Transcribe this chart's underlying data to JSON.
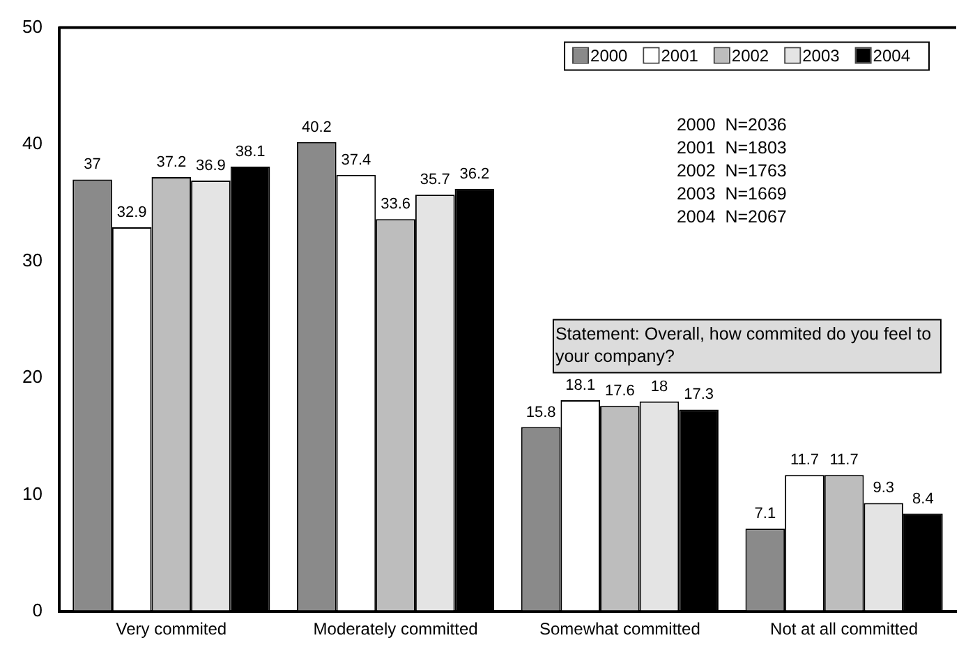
{
  "chart_data": {
    "type": "bar",
    "categories": [
      "Very commited",
      "Moderately committed",
      "Somewhat committed",
      "Not at all committed"
    ],
    "series": [
      {
        "name": "2000",
        "color": "#8a8a8a",
        "values": [
          37,
          40.2,
          15.8,
          7.1
        ]
      },
      {
        "name": "2001",
        "color": "#ffffff",
        "values": [
          32.9,
          37.4,
          18.1,
          11.7
        ]
      },
      {
        "name": "2002",
        "color": "#bdbdbd",
        "values": [
          37.2,
          33.6,
          17.6,
          11.7
        ]
      },
      {
        "name": "2003",
        "color": "#e4e4e4",
        "values": [
          36.9,
          35.7,
          18,
          9.3
        ]
      },
      {
        "name": "2004",
        "color": "#000000",
        "values": [
          38.1,
          36.2,
          17.3,
          8.4
        ]
      }
    ],
    "ylim": [
      0,
      50
    ],
    "yticks": [
      0,
      10,
      20,
      30,
      40,
      50
    ],
    "grid": false,
    "legend": "top right",
    "data_labels": true,
    "annotations": [
      "2000  N=2036",
      "2001  N=1803",
      "2002  N=1763",
      "2003  N=1669",
      "2004  N=2067",
      "Statement: Overall, how commited do you feel to your company?"
    ]
  }
}
